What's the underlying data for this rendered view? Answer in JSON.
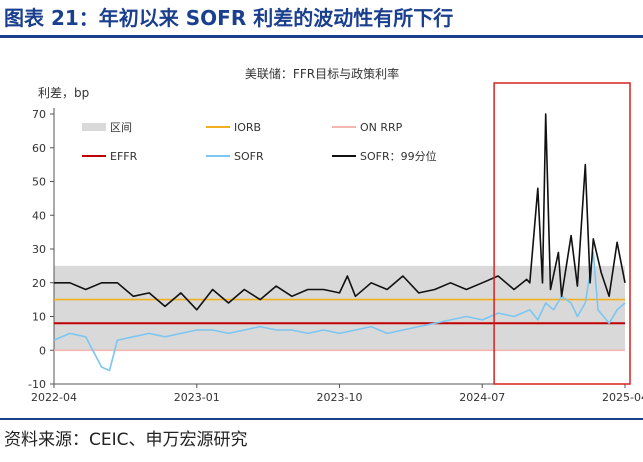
{
  "header": {
    "title": "图表 21：年初以来 SOFR 利差的波动性有所下行"
  },
  "footer": {
    "source": "资料来源：CEIC、申万宏源研究"
  },
  "chart_data": {
    "type": "line",
    "title": "美联储：FFR目标与政策利率",
    "ylabel": "利差，bp",
    "ylim": [
      -10,
      70
    ],
    "yticks": [
      -10,
      0,
      10,
      20,
      30,
      40,
      50,
      60,
      70
    ],
    "x_ticks": [
      "2022-04",
      "2023-01",
      "2023-10",
      "2024-07",
      "2025-04"
    ],
    "x_range": [
      "2022-04",
      "2025-04"
    ],
    "legend": {
      "placement": "top-left",
      "entries": [
        {
          "label": "区间",
          "color": "#d9d9d9"
        },
        {
          "label": "IORB",
          "color": "#f2b01e"
        },
        {
          "label": "ON RRP",
          "color": "#f4b6b0"
        },
        {
          "label": "EFFR",
          "color": "#c00000"
        },
        {
          "label": "SOFR",
          "color": "#7cc6f2"
        },
        {
          "label": "SOFR：99分位",
          "color": "#111111"
        }
      ]
    },
    "colors": {
      "band": "#d9d9d9",
      "iorb": "#f2b01e",
      "on_rrp": "#f4b6b0",
      "effr": "#c00000",
      "sofr": "#7cc6f2",
      "sofr_p99": "#111111",
      "highlight": "#d62020"
    },
    "band": {
      "lower": 0,
      "upper": 25
    },
    "highlight_range": [
      "2024-08",
      "2025-04"
    ],
    "series": [
      {
        "name": "IORB",
        "values": [
          [
            0,
            15
          ],
          [
            36,
            15
          ]
        ]
      },
      {
        "name": "ON RRP",
        "values": [
          [
            0,
            0
          ],
          [
            32,
            0
          ],
          [
            32.8,
            0
          ],
          [
            36,
            0
          ]
        ]
      },
      {
        "name": "EFFR",
        "values": [
          [
            0,
            8
          ],
          [
            36,
            8
          ]
        ]
      },
      {
        "name": "SOFR",
        "values": [
          [
            0,
            3
          ],
          [
            1,
            5
          ],
          [
            2,
            4
          ],
          [
            3,
            -5
          ],
          [
            3.5,
            -6
          ],
          [
            4,
            3
          ],
          [
            5,
            4
          ],
          [
            6,
            5
          ],
          [
            7,
            4
          ],
          [
            8,
            5
          ],
          [
            9,
            6
          ],
          [
            10,
            6
          ],
          [
            11,
            5
          ],
          [
            12,
            6
          ],
          [
            13,
            7
          ],
          [
            14,
            6
          ],
          [
            15,
            6
          ],
          [
            16,
            5
          ],
          [
            17,
            6
          ],
          [
            18,
            5
          ],
          [
            19,
            6
          ],
          [
            20,
            7
          ],
          [
            21,
            5
          ],
          [
            22,
            6
          ],
          [
            23,
            7
          ],
          [
            24,
            8
          ],
          [
            25,
            9
          ],
          [
            26,
            10
          ],
          [
            27,
            9
          ],
          [
            28,
            11
          ],
          [
            29,
            10
          ],
          [
            30,
            12
          ],
          [
            30.5,
            9
          ],
          [
            31,
            14
          ],
          [
            31.5,
            12
          ],
          [
            32,
            16
          ],
          [
            32.6,
            14
          ],
          [
            33,
            10
          ],
          [
            33.5,
            14
          ],
          [
            34,
            29
          ],
          [
            34.3,
            12
          ],
          [
            35,
            8
          ],
          [
            35.5,
            12
          ],
          [
            36,
            14
          ]
        ]
      },
      {
        "name": "SOFR：99分位",
        "values": [
          [
            0,
            20
          ],
          [
            1,
            20
          ],
          [
            2,
            18
          ],
          [
            3,
            20
          ],
          [
            4,
            20
          ],
          [
            5,
            16
          ],
          [
            6,
            17
          ],
          [
            7,
            13
          ],
          [
            8,
            17
          ],
          [
            9,
            12
          ],
          [
            10,
            18
          ],
          [
            11,
            14
          ],
          [
            12,
            18
          ],
          [
            13,
            15
          ],
          [
            14,
            19
          ],
          [
            15,
            16
          ],
          [
            16,
            18
          ],
          [
            17,
            18
          ],
          [
            18,
            17
          ],
          [
            18.5,
            22
          ],
          [
            19,
            16
          ],
          [
            20,
            20
          ],
          [
            21,
            18
          ],
          [
            22,
            22
          ],
          [
            23,
            17
          ],
          [
            24,
            18
          ],
          [
            25,
            20
          ],
          [
            26,
            18
          ],
          [
            27,
            20
          ],
          [
            28,
            22
          ],
          [
            29,
            18
          ],
          [
            29.8,
            21
          ],
          [
            30,
            20
          ],
          [
            30.5,
            48
          ],
          [
            30.8,
            20
          ],
          [
            31,
            70
          ],
          [
            31.3,
            18
          ],
          [
            31.8,
            29
          ],
          [
            32,
            16
          ],
          [
            32.6,
            34
          ],
          [
            33,
            19
          ],
          [
            33.5,
            55
          ],
          [
            33.8,
            20
          ],
          [
            34,
            33
          ],
          [
            34.5,
            23
          ],
          [
            35,
            16
          ],
          [
            35.5,
            32
          ],
          [
            36,
            20
          ]
        ]
      }
    ]
  }
}
